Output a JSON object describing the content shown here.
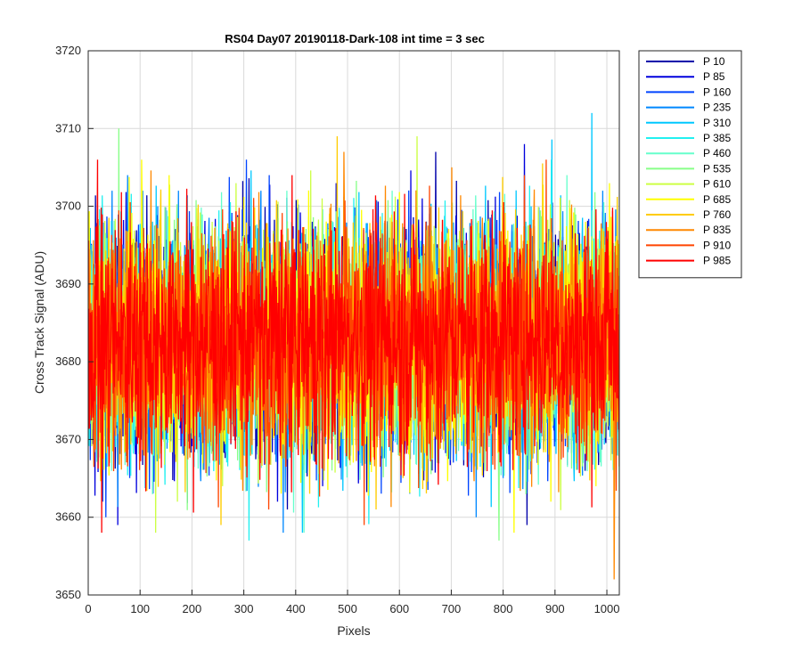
{
  "chart_data": {
    "type": "line",
    "title": "RS04 Day07 20190118-Dark-108 int time = 3 sec",
    "xlabel": "Pixels",
    "ylabel": "Cross Track Signal (ADU)",
    "xlim": [
      0,
      1024
    ],
    "ylim": [
      3650,
      3720
    ],
    "x_ticks": [
      0,
      100,
      200,
      300,
      400,
      500,
      600,
      700,
      800,
      900,
      1000
    ],
    "y_ticks": [
      3650,
      3660,
      3670,
      3680,
      3690,
      3700,
      3710,
      3720
    ],
    "grid": true,
    "legend_position": "outside-top-right",
    "x_points": 1024,
    "series": [
      {
        "name": "P 10",
        "color": "#0000aa",
        "mean": 3683,
        "max": 3707,
        "min": 3659
      },
      {
        "name": "P 85",
        "color": "#0000dd",
        "mean": 3683,
        "max": 3708,
        "min": 3659
      },
      {
        "name": "P 160",
        "color": "#0044ff",
        "mean": 3683,
        "max": 3706,
        "min": 3660
      },
      {
        "name": "P 235",
        "color": "#0088ff",
        "mean": 3683,
        "max": 3704,
        "min": 3658
      },
      {
        "name": "P 310",
        "color": "#00c8ff",
        "mean": 3683,
        "max": 3712,
        "min": 3658
      },
      {
        "name": "P 385",
        "color": "#22f0f0",
        "mean": 3683,
        "max": 3706,
        "min": 3657
      },
      {
        "name": "P 460",
        "color": "#66ffcc",
        "mean": 3683,
        "max": 3704,
        "min": 3658
      },
      {
        "name": "P 535",
        "color": "#88ff88",
        "mean": 3683,
        "max": 3710,
        "min": 3657
      },
      {
        "name": "P 610",
        "color": "#ccff44",
        "mean": 3683,
        "max": 3709,
        "min": 3658
      },
      {
        "name": "P 685",
        "color": "#ffff00",
        "mean": 3683,
        "max": 3706,
        "min": 3658
      },
      {
        "name": "P 760",
        "color": "#ffcc00",
        "mean": 3683,
        "max": 3709,
        "min": 3659
      },
      {
        "name": "P 835",
        "color": "#ff8800",
        "mean": 3683,
        "max": 3707,
        "min": 3652
      },
      {
        "name": "P 910",
        "color": "#ff4400",
        "mean": 3683,
        "max": 3706,
        "min": 3659
      },
      {
        "name": "P 985",
        "color": "#ff0000",
        "mean": 3683,
        "max": 3706,
        "min": 3658
      }
    ]
  }
}
